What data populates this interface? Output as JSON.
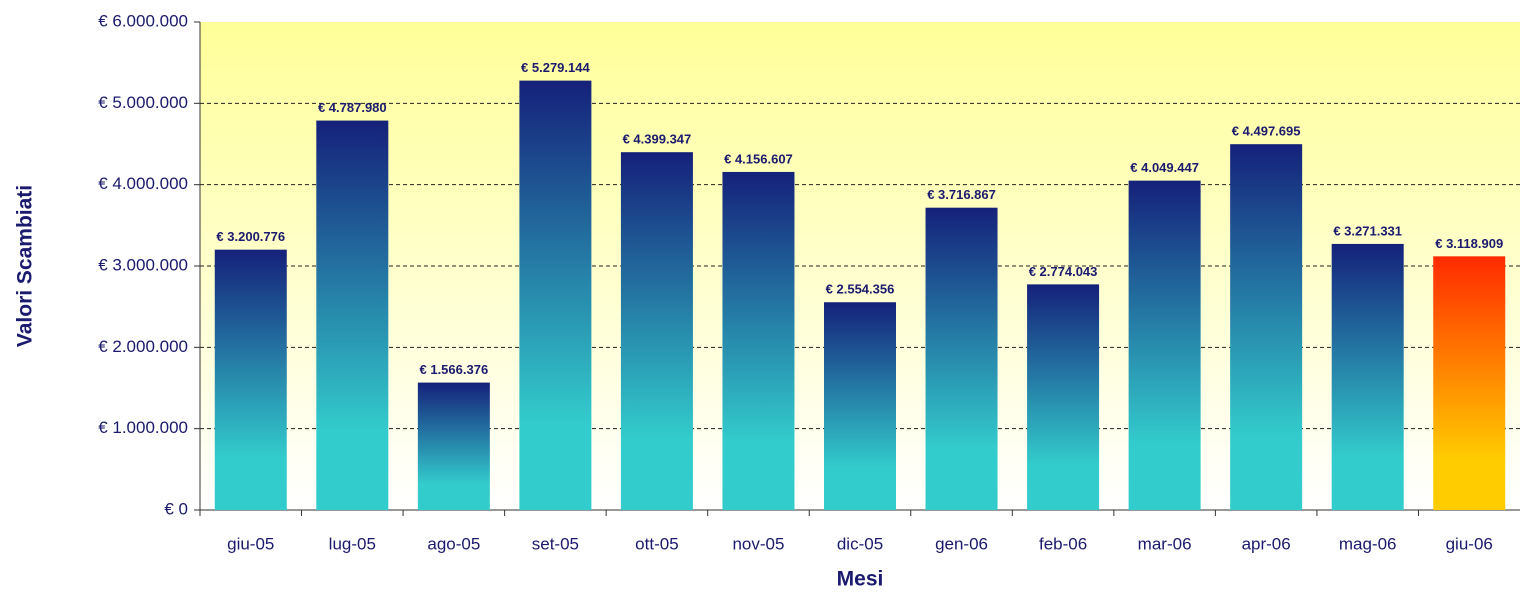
{
  "chart_data": {
    "type": "bar",
    "x_label": "Mesi",
    "y_label": "Valori Scambiati",
    "categories": [
      "giu-05",
      "lug-05",
      "ago-05",
      "set-05",
      "ott-05",
      "nov-05",
      "dic-05",
      "gen-06",
      "feb-06",
      "mar-06",
      "apr-06",
      "mag-06",
      "giu-06"
    ],
    "values": [
      3200776,
      4787980,
      1566376,
      5279144,
      4399347,
      4156607,
      2554356,
      3716867,
      2774043,
      4049447,
      4497695,
      3271331,
      3118909
    ],
    "value_labels": [
      "€ 3.200.776",
      "€ 4.787.980",
      "€ 1.566.376",
      "€ 5.279.144",
      "€ 4.399.347",
      "€ 4.156.607",
      "€ 2.554.356",
      "€ 3.716.867",
      "€ 2.774.043",
      "€ 4.049.447",
      "€ 4.497.695",
      "€ 3.271.331",
      "€ 3.118.909"
    ],
    "bar_colors": [
      [
        "#15217a",
        "#33cccc"
      ],
      [
        "#15217a",
        "#33cccc"
      ],
      [
        "#15217a",
        "#33cccc"
      ],
      [
        "#15217a",
        "#33cccc"
      ],
      [
        "#15217a",
        "#33cccc"
      ],
      [
        "#15217a",
        "#33cccc"
      ],
      [
        "#15217a",
        "#33cccc"
      ],
      [
        "#15217a",
        "#33cccc"
      ],
      [
        "#15217a",
        "#33cccc"
      ],
      [
        "#15217a",
        "#33cccc"
      ],
      [
        "#15217a",
        "#33cccc"
      ],
      [
        "#15217a",
        "#33cccc"
      ],
      [
        "#ff2a00",
        "#ffcc00"
      ]
    ],
    "ylim": [
      0,
      6000000
    ],
    "yticks": [
      {
        "value": 0,
        "label": "€ 0"
      },
      {
        "value": 1000000,
        "label": "€ 1.000.000"
      },
      {
        "value": 2000000,
        "label": "€ 2.000.000"
      },
      {
        "value": 3000000,
        "label": "€ 3.000.000"
      },
      {
        "value": 4000000,
        "label": "€ 4.000.000"
      },
      {
        "value": 5000000,
        "label": "€ 5.000.000"
      },
      {
        "value": 6000000,
        "label": "€ 6.000.000"
      }
    ],
    "grid": true
  }
}
